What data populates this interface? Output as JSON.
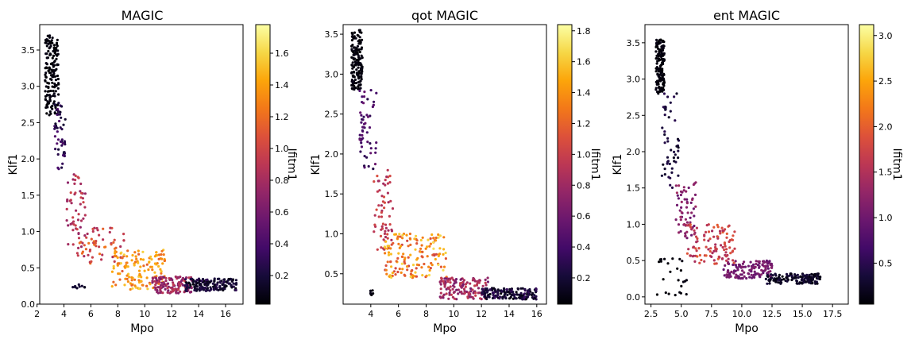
{
  "figure": {
    "background": "#ffffff"
  },
  "chart_data": [
    {
      "type": "scatter",
      "title": "MAGIC",
      "xlabel": "Mpo",
      "ylabel": "Klf1",
      "colorbar_label": "Ifitm1",
      "colormap": "inferno",
      "xlim": [
        2.2,
        17.3
      ],
      "ylim": [
        0.0,
        3.85
      ],
      "xticks": [
        2,
        4,
        6,
        8,
        10,
        12,
        14,
        16
      ],
      "xtick_labels": [
        "2",
        "4",
        "6",
        "8",
        "10",
        "12",
        "14",
        "16"
      ],
      "yticks": [
        0.0,
        0.5,
        1.0,
        1.5,
        2.0,
        2.5,
        3.0,
        3.5
      ],
      "ytick_labels": [
        "0.0",
        "0.5",
        "1.0",
        "1.5",
        "2.0",
        "2.5",
        "3.0",
        "3.5"
      ],
      "clim": [
        0.02,
        1.78
      ],
      "cticks": [
        0.2,
        0.4,
        0.6,
        0.8,
        1.0,
        1.2,
        1.4,
        1.6
      ],
      "ctick_labels": [
        "0.2",
        "0.4",
        "0.6",
        "0.8",
        "1.0",
        "1.2",
        "1.4",
        "1.6"
      ],
      "clusters": [
        {
          "x": [
            2.6,
            3.6
          ],
          "y": [
            2.6,
            3.7
          ],
          "color": [
            0.02,
            0.08
          ],
          "n": 160
        },
        {
          "x": [
            3.3,
            4.1
          ],
          "y": [
            1.8,
            2.8
          ],
          "color": [
            0.15,
            0.45
          ],
          "n": 50
        },
        {
          "x": [
            4.2,
            5.6
          ],
          "y": [
            0.7,
            1.8
          ],
          "color": [
            0.7,
            1.0
          ],
          "n": 55
        },
        {
          "x": [
            5.0,
            8.5
          ],
          "y": [
            0.55,
            1.05
          ],
          "color": [
            0.8,
            1.25
          ],
          "n": 60
        },
        {
          "x": [
            7.5,
            11.5
          ],
          "y": [
            0.2,
            0.75
          ],
          "color": [
            1.1,
            1.6
          ],
          "n": 140
        },
        {
          "x": [
            10.5,
            13.5
          ],
          "y": [
            0.15,
            0.38
          ],
          "color": [
            0.6,
            0.95
          ],
          "n": 130
        },
        {
          "x": [
            13.0,
            16.8
          ],
          "y": [
            0.18,
            0.35
          ],
          "color": [
            0.05,
            0.3
          ],
          "n": 160
        },
        {
          "x": [
            4.6,
            6.0
          ],
          "y": [
            0.22,
            0.27
          ],
          "color": [
            0.1,
            0.2
          ],
          "n": 10
        }
      ]
    },
    {
      "type": "scatter",
      "title": "qot MAGIC",
      "xlabel": "Mpo",
      "ylabel": "Klf1",
      "colorbar_label": "Ifitm1",
      "colormap": "inferno",
      "xlim": [
        2.0,
        16.7
      ],
      "ylim": [
        0.12,
        3.62
      ],
      "xticks": [
        4,
        6,
        8,
        10,
        12,
        14,
        16
      ],
      "xtick_labels": [
        "4",
        "6",
        "8",
        "10",
        "12",
        "14",
        "16"
      ],
      "yticks": [
        0.5,
        1.0,
        1.5,
        2.0,
        2.5,
        3.0,
        3.5
      ],
      "ytick_labels": [
        "0.5",
        "1.0",
        "1.5",
        "2.0",
        "2.5",
        "3.0",
        "3.5"
      ],
      "clim": [
        0.03,
        1.84
      ],
      "cticks": [
        0.2,
        0.4,
        0.6,
        0.8,
        1.0,
        1.2,
        1.4,
        1.6,
        1.8
      ],
      "ctick_labels": [
        "0.2",
        "0.4",
        "0.6",
        "0.8",
        "1.0",
        "1.2",
        "1.4",
        "1.6",
        "1.8"
      ],
      "clusters": [
        {
          "x": [
            2.6,
            3.4
          ],
          "y": [
            2.8,
            3.55
          ],
          "color": [
            0.03,
            0.1
          ],
          "n": 150
        },
        {
          "x": [
            3.2,
            4.4
          ],
          "y": [
            1.8,
            2.8
          ],
          "color": [
            0.25,
            0.6
          ],
          "n": 55
        },
        {
          "x": [
            4.2,
            5.6
          ],
          "y": [
            0.8,
            1.8
          ],
          "color": [
            0.8,
            1.1
          ],
          "n": 60
        },
        {
          "x": [
            5.0,
            9.5
          ],
          "y": [
            0.45,
            1.0
          ],
          "color": [
            1.0,
            1.7
          ],
          "n": 160
        },
        {
          "x": [
            9.0,
            12.5
          ],
          "y": [
            0.18,
            0.45
          ],
          "color": [
            0.6,
            1.0
          ],
          "n": 140
        },
        {
          "x": [
            12.0,
            16.0
          ],
          "y": [
            0.18,
            0.32
          ],
          "color": [
            0.05,
            0.35
          ],
          "n": 160
        },
        {
          "x": [
            3.9,
            4.2
          ],
          "y": [
            0.23,
            0.3
          ],
          "color": [
            0.05,
            0.1
          ],
          "n": 8
        }
      ]
    },
    {
      "type": "scatter",
      "title": "ent MAGIC",
      "xlabel": "Mpo",
      "ylabel": "Klf1",
      "colorbar_label": "Ifitm1",
      "colormap": "inferno",
      "xlim": [
        2.0,
        18.8
      ],
      "ylim": [
        -0.1,
        3.75
      ],
      "xticks": [
        2.5,
        5.0,
        7.5,
        10.0,
        12.5,
        15.0,
        17.5
      ],
      "xtick_labels": [
        "2.5",
        "5.0",
        "7.5",
        "10.0",
        "12.5",
        "15.0",
        "17.5"
      ],
      "yticks": [
        0.0,
        0.5,
        1.0,
        1.5,
        2.0,
        2.5,
        3.0,
        3.5
      ],
      "ytick_labels": [
        "0.0",
        "0.5",
        "1.0",
        "1.5",
        "2.0",
        "2.5",
        "3.0",
        "3.5"
      ],
      "clim": [
        0.05,
        3.12
      ],
      "cticks": [
        0.5,
        1.0,
        1.5,
        2.0,
        2.5,
        3.0
      ],
      "ctick_labels": [
        "0.5",
        "1.0",
        "1.5",
        "2.0",
        "2.5",
        "3.0"
      ],
      "clusters": [
        {
          "x": [
            2.9,
            3.6
          ],
          "y": [
            2.8,
            3.55
          ],
          "color": [
            0.05,
            0.15
          ],
          "n": 150
        },
        {
          "x": [
            3.4,
            4.8
          ],
          "y": [
            1.5,
            2.8
          ],
          "color": [
            0.2,
            0.5
          ],
          "n": 50
        },
        {
          "x": [
            4.5,
            6.2
          ],
          "y": [
            0.8,
            1.6
          ],
          "color": [
            0.9,
            1.4
          ],
          "n": 60
        },
        {
          "x": [
            5.5,
            9.5
          ],
          "y": [
            0.45,
            1.0
          ],
          "color": [
            1.4,
            2.0
          ],
          "n": 110
        },
        {
          "x": [
            8.5,
            12.5
          ],
          "y": [
            0.25,
            0.5
          ],
          "color": [
            0.9,
            1.2
          ],
          "n": 130
        },
        {
          "x": [
            12.0,
            16.5
          ],
          "y": [
            0.18,
            0.32
          ],
          "color": [
            0.1,
            0.4
          ],
          "n": 150
        },
        {
          "x": [
            3.0,
            5.5
          ],
          "y": [
            0.0,
            0.55
          ],
          "color": [
            0.05,
            0.15
          ],
          "n": 25
        }
      ]
    }
  ]
}
